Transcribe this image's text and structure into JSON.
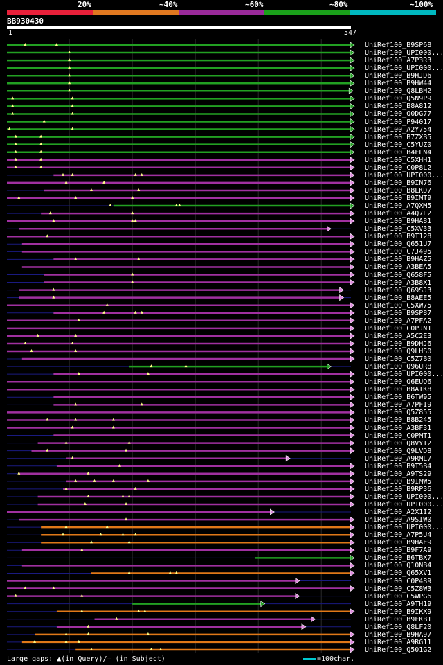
{
  "legend": {
    "labels": [
      "20%",
      "~40%",
      "~60%",
      "~80%",
      "~100%"
    ],
    "colors": [
      "#e8203a",
      "#e07820",
      "#9a2a9a",
      "#1aa01a",
      "#00b8c0"
    ]
  },
  "query": {
    "id": "BB930430",
    "start": "1",
    "end": "547",
    "length": 547
  },
  "footer": {
    "gaps_note": "Large gaps: ▲(in Query)/– (in Subject)",
    "scale_note": "=100char."
  },
  "colors": {
    "green": "#22a022",
    "magenta": "#a030a0",
    "orange": "#e07818",
    "line": "#1a1a80",
    "gap": "#ffff88",
    "arrow_fill": "#dd88dd"
  },
  "hits": [
    {
      "label": "UniRef100_B9SP68",
      "start": 1,
      "end": 547,
      "color": "green",
      "ends": "arrow",
      "gaps": [
        30,
        80
      ]
    },
    {
      "label": "UniRef100_UPI000...",
      "start": 1,
      "end": 547,
      "color": "green",
      "ends": "arrow",
      "gaps": [
        100
      ]
    },
    {
      "label": "UniRef100_A7P3R3",
      "start": 1,
      "end": 547,
      "color": "green",
      "ends": "arrow",
      "gaps": [
        100
      ]
    },
    {
      "label": "UniRef100_UPI000...",
      "start": 1,
      "end": 547,
      "color": "green",
      "ends": "arrow",
      "gaps": [
        100
      ]
    },
    {
      "label": "UniRef100_B9HJD6",
      "start": 1,
      "end": 547,
      "color": "green",
      "ends": "arrow",
      "gaps": [
        100
      ]
    },
    {
      "label": "UniRef100_B9HW44",
      "start": 1,
      "end": 547,
      "color": "green",
      "ends": "arrow",
      "gaps": [
        100
      ]
    },
    {
      "label": "UniRef100_Q8LBH2",
      "start": 1,
      "end": 545,
      "color": "green",
      "ends": "arrow",
      "gaps": [
        100
      ]
    },
    {
      "label": "UniRef100_Q5N9P9",
      "start": 1,
      "end": 547,
      "color": "green",
      "ends": "arrow",
      "gaps": [
        10,
        105
      ]
    },
    {
      "label": "UniRef100_B8A812",
      "start": 1,
      "end": 547,
      "color": "green",
      "ends": "arrow",
      "gaps": [
        10,
        105
      ]
    },
    {
      "label": "UniRef100_Q0DG77",
      "start": 1,
      "end": 547,
      "color": "green",
      "ends": "arrow",
      "gaps": [
        10,
        105
      ]
    },
    {
      "label": "UniRef100_P94017",
      "start": 1,
      "end": 547,
      "color": "green",
      "ends": "arrow",
      "gaps": [
        60
      ]
    },
    {
      "label": "UniRef100_A2Y754",
      "start": 1,
      "end": 547,
      "color": "green",
      "ends": "arrow",
      "gaps": [
        5,
        105
      ]
    },
    {
      "label": "UniRef100_B7ZXB5",
      "start": 1,
      "end": 547,
      "color": "green",
      "ends": "arrow",
      "gaps": [
        15,
        55
      ]
    },
    {
      "label": "UniRef100_C5YUZ0",
      "start": 1,
      "end": 547,
      "color": "green",
      "ends": "arrow",
      "gaps": [
        15,
        55
      ]
    },
    {
      "label": "UniRef100_B4FLN4",
      "start": 1,
      "end": 547,
      "color": "green",
      "ends": "arrow",
      "gaps": [
        15,
        55
      ]
    },
    {
      "label": "UniRef100_C5XHH1",
      "start": 1,
      "end": 547,
      "color": "magenta",
      "ends": "arrow",
      "gaps": [
        15,
        55
      ]
    },
    {
      "label": "UniRef100_C0P8L2",
      "start": 1,
      "end": 547,
      "color": "magenta",
      "ends": "arrow",
      "gaps": [
        15,
        55
      ]
    },
    {
      "label": "UniRef100_UPI000...",
      "start": 75,
      "end": 547,
      "color": "magenta",
      "ends": "arrow",
      "gaps": [
        90,
        105,
        205,
        215
      ]
    },
    {
      "label": "UniRef100_B9IN76",
      "start": 1,
      "end": 547,
      "color": "magenta",
      "ends": "arrow",
      "gaps": [
        95,
        155
      ]
    },
    {
      "label": "UniRef100_B8LKD7",
      "start": 60,
      "end": 547,
      "color": "magenta",
      "ends": "arrow",
      "gaps": [
        135,
        210
      ]
    },
    {
      "label": "UniRef100_B9IMT9",
      "start": 1,
      "end": 547,
      "color": "magenta",
      "ends": "arrow",
      "gaps": [
        20,
        110,
        200
      ]
    },
    {
      "label": "UniRef100_A7QXM5",
      "start": 170,
      "end": 547,
      "color": "green",
      "ends": "arrow",
      "gaps": [
        165,
        270,
        275
      ]
    },
    {
      "label": "UniRef100_A4Q7L2",
      "start": 55,
      "end": 547,
      "color": "magenta",
      "ends": "arrow",
      "gaps": [
        70,
        200
      ]
    },
    {
      "label": "UniRef100_B9HA81",
      "start": 1,
      "end": 547,
      "color": "magenta",
      "ends": "arrow",
      "gaps": [
        75,
        200,
        205
      ]
    },
    {
      "label": "UniRef100_C5XV33",
      "start": 20,
      "end": 510,
      "color": "magenta",
      "ends": "arrow",
      "gaps": []
    },
    {
      "label": "UniRef100_B9T128",
      "start": 1,
      "end": 547,
      "color": "magenta",
      "ends": "arrow",
      "gaps": [
        65
      ]
    },
    {
      "label": "UniRef100_Q651U7",
      "start": 25,
      "end": 547,
      "color": "magenta",
      "ends": "arrow",
      "gaps": []
    },
    {
      "label": "UniRef100_C7J495",
      "start": 25,
      "end": 547,
      "color": "magenta",
      "ends": "arrow",
      "gaps": []
    },
    {
      "label": "UniRef100_B9HAZ5",
      "start": 75,
      "end": 547,
      "color": "magenta",
      "ends": "arrow",
      "gaps": [
        110,
        210
      ]
    },
    {
      "label": "UniRef100_A3BEA5",
      "start": 25,
      "end": 547,
      "color": "magenta",
      "ends": "arrow",
      "gaps": []
    },
    {
      "label": "UniRef100_Q658F5",
      "start": 60,
      "end": 547,
      "color": "magenta",
      "ends": "arrow",
      "gaps": [
        200
      ]
    },
    {
      "label": "UniRef100_A3B8X1",
      "start": 60,
      "end": 547,
      "color": "magenta",
      "ends": "arrow",
      "gaps": [
        200
      ]
    },
    {
      "label": "UniRef100_Q69SJ3",
      "start": 20,
      "end": 530,
      "color": "magenta",
      "ends": "arrow",
      "gaps": [
        75
      ]
    },
    {
      "label": "UniRef100_B8AEE5",
      "start": 20,
      "end": 530,
      "color": "magenta",
      "ends": "arrow",
      "gaps": [
        75
      ]
    },
    {
      "label": "UniRef100_C5XW75",
      "start": 1,
      "end": 547,
      "color": "magenta",
      "ends": "arrow",
      "gaps": [
        160
      ]
    },
    {
      "label": "UniRef100_B9SP87",
      "start": 75,
      "end": 547,
      "color": "magenta",
      "ends": "arrow",
      "gaps": [
        155,
        205,
        215
      ]
    },
    {
      "label": "UniRef100_A7PFA2",
      "start": 1,
      "end": 547,
      "color": "magenta",
      "ends": "arrow",
      "gaps": [
        115
      ]
    },
    {
      "label": "UniRef100_C0PJN1",
      "start": 1,
      "end": 547,
      "color": "magenta",
      "ends": "arrow",
      "gaps": []
    },
    {
      "label": "UniRef100_A5C2E3",
      "start": 1,
      "end": 547,
      "color": "magenta",
      "ends": "arrow",
      "gaps": [
        50,
        110
      ]
    },
    {
      "label": "UniRef100_B9DHJ6",
      "start": 1,
      "end": 547,
      "color": "magenta",
      "ends": "arrow",
      "gaps": [
        30,
        105
      ]
    },
    {
      "label": "UniRef100_Q9LHS0",
      "start": 1,
      "end": 547,
      "color": "magenta",
      "ends": "arrow",
      "gaps": [
        40,
        110
      ]
    },
    {
      "label": "UniRef100_C5Z7B0",
      "start": 25,
      "end": 547,
      "color": "magenta",
      "ends": "arrow",
      "gaps": []
    },
    {
      "label": "UniRef100_Q96UR8",
      "start": 195,
      "end": 510,
      "color": "green",
      "ends": "arrow",
      "gaps": [
        230,
        285
      ]
    },
    {
      "label": "UniRef100_UPI000...",
      "start": 75,
      "end": 547,
      "color": "magenta",
      "ends": "arrow",
      "gaps": [
        115,
        225
      ]
    },
    {
      "label": "UniRef100_Q6EUQ6",
      "start": 1,
      "end": 547,
      "color": "magenta",
      "ends": "arrow",
      "gaps": []
    },
    {
      "label": "UniRef100_B8AIK8",
      "start": 1,
      "end": 547,
      "color": "magenta",
      "ends": "arrow",
      "gaps": []
    },
    {
      "label": "UniRef100_B6TW95",
      "start": 75,
      "end": 547,
      "color": "magenta",
      "ends": "arrow",
      "gaps": []
    },
    {
      "label": "UniRef100_A7PFI9",
      "start": 75,
      "end": 547,
      "color": "magenta",
      "ends": "arrow",
      "gaps": [
        110,
        215
      ]
    },
    {
      "label": "UniRef100_Q5Z855",
      "start": 1,
      "end": 547,
      "color": "magenta",
      "ends": "arrow",
      "gaps": []
    },
    {
      "label": "UniRef100_B8B245",
      "start": 1,
      "end": 547,
      "color": "magenta",
      "ends": "arrow",
      "gaps": [
        65,
        110,
        170
      ]
    },
    {
      "label": "UniRef100_A3BF31",
      "start": 1,
      "end": 547,
      "color": "magenta",
      "ends": "arrow",
      "gaps": [
        105,
        170
      ]
    },
    {
      "label": "UniRef100_C0PMT1",
      "start": 75,
      "end": 547,
      "color": "magenta",
      "ends": "arrow",
      "gaps": []
    },
    {
      "label": "UniRef100_Q8VYT2",
      "start": 50,
      "end": 547,
      "color": "magenta",
      "ends": "arrow",
      "gaps": [
        95,
        195
      ]
    },
    {
      "label": "UniRef100_Q9LVD8",
      "start": 40,
      "end": 547,
      "color": "magenta",
      "ends": "arrow",
      "gaps": [
        65,
        190
      ]
    },
    {
      "label": "UniRef100_A9RML7",
      "start": 95,
      "end": 445,
      "color": "magenta",
      "ends": "arrow",
      "gaps": [
        105
      ]
    },
    {
      "label": "UniRef100_B9T5B4",
      "start": 80,
      "end": 547,
      "color": "magenta",
      "ends": "arrow",
      "gaps": [
        180
      ]
    },
    {
      "label": "UniRef100_A9TS29",
      "start": 20,
      "end": 547,
      "color": "magenta",
      "ends": "arrow",
      "gaps": [
        20,
        130
      ]
    },
    {
      "label": "UniRef100_B9IMW5",
      "start": 95,
      "end": 547,
      "color": "magenta",
      "ends": "arrow",
      "gaps": [
        110,
        140,
        170,
        225
      ]
    },
    {
      "label": "UniRef100_B9RP36",
      "start": 90,
      "end": 547,
      "color": "magenta",
      "ends": "arrow",
      "gaps": [
        95,
        205
      ]
    },
    {
      "label": "UniRef100_UPI000...",
      "start": 50,
      "end": 547,
      "color": "magenta",
      "ends": "arrow",
      "gaps": [
        130,
        185,
        195
      ]
    },
    {
      "label": "UniRef100_UPI000...",
      "start": 50,
      "end": 547,
      "color": "magenta",
      "ends": "arrow",
      "gaps": [
        125,
        190
      ]
    },
    {
      "label": "UniRef100_A2X1I2",
      "start": 1,
      "end": 420,
      "color": "magenta",
      "ends": "arrow",
      "gaps": []
    },
    {
      "label": "UniRef100_A9SIW0",
      "start": 20,
      "end": 547,
      "color": "magenta",
      "ends": "arrow",
      "gaps": [
        190
      ]
    },
    {
      "label": "UniRef100_UPI000...",
      "start": 55,
      "end": 547,
      "color": "orange",
      "ends": "arrow",
      "gaps": [
        95,
        160
      ]
    },
    {
      "label": "UniRef100_A7P5U4",
      "start": 55,
      "end": 547,
      "color": "orange",
      "ends": "arrow",
      "gaps": [
        90,
        150,
        185,
        205
      ]
    },
    {
      "label": "UniRef100_B9HAE9",
      "start": 55,
      "end": 547,
      "color": "orange",
      "ends": "arrow",
      "gaps": [
        135,
        195
      ]
    },
    {
      "label": "UniRef100_B9F7A9",
      "start": 25,
      "end": 547,
      "color": "magenta",
      "ends": "arrow",
      "gaps": [
        120
      ]
    },
    {
      "label": "UniRef100_B6TBX7",
      "start": 395,
      "end": 547,
      "color": "green",
      "ends": "arrow",
      "gaps": []
    },
    {
      "label": "UniRef100_Q10NB4",
      "start": 25,
      "end": 547,
      "color": "magenta",
      "ends": "arrow",
      "gaps": []
    },
    {
      "label": "UniRef100_Q65XV1",
      "start": 135,
      "end": 547,
      "color": "orange",
      "ends": "arrow",
      "gaps": [
        195,
        260,
        270
      ]
    },
    {
      "label": "UniRef100_C0P489",
      "start": 1,
      "end": 460,
      "color": "magenta",
      "ends": "arrow",
      "gaps": []
    },
    {
      "label": "UniRef100_C5Z8W3",
      "start": 1,
      "end": 547,
      "color": "magenta",
      "ends": "arrow",
      "gaps": [
        30,
        75
      ]
    },
    {
      "label": "UniRef100_C5WPG6",
      "start": 1,
      "end": 460,
      "color": "magenta",
      "ends": "arrow",
      "gaps": [
        15,
        120
      ]
    },
    {
      "label": "UniRef100_A9TH19",
      "start": 200,
      "end": 405,
      "color": "green",
      "ends": "arrow",
      "gaps": []
    },
    {
      "label": "UniRef100_B9IKX9",
      "start": 80,
      "end": 547,
      "color": "orange",
      "ends": "arrow",
      "gaps": [
        120,
        210,
        220
      ]
    },
    {
      "label": "UniRef100_B9FKB1",
      "start": 140,
      "end": 485,
      "color": "magenta",
      "ends": "arrow",
      "gaps": [
        175
      ]
    },
    {
      "label": "UniRef100_Q8LF20",
      "start": 80,
      "end": 470,
      "color": "magenta",
      "ends": "arrow",
      "gaps": [
        130
      ]
    },
    {
      "label": "UniRef100_B9HA97",
      "start": 45,
      "end": 547,
      "color": "orange",
      "ends": "arrow",
      "gaps": [
        95,
        130,
        225
      ]
    },
    {
      "label": "UniRef100_A9RG11",
      "start": 25,
      "end": 547,
      "color": "orange",
      "ends": "arrow",
      "gaps": [
        45,
        95,
        115
      ]
    },
    {
      "label": "UniRef100_Q501G2",
      "start": 110,
      "end": 547,
      "color": "orange",
      "ends": "arrow",
      "gaps": [
        135,
        230,
        245
      ]
    }
  ]
}
